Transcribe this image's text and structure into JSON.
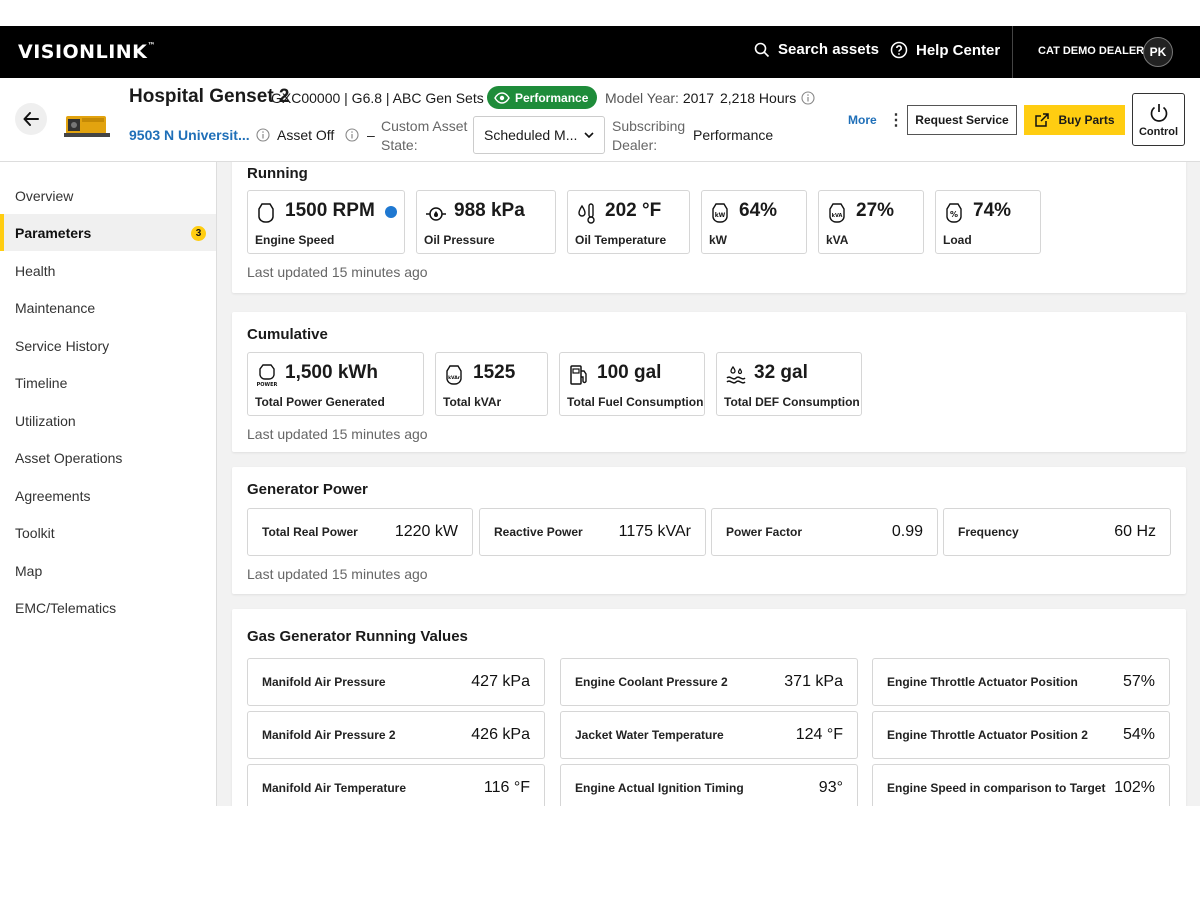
{
  "topbar": {
    "logo": "VISIONLINK",
    "logo_mark": "™",
    "search_label": "Search assets",
    "help_label": "Help Center",
    "dealer": "CAT DEMO DEALER",
    "avatar": "PK"
  },
  "asset": {
    "title": "Hospital Genset 2",
    "meta": "GXC00000 | G6.8  | ABC Gen Sets",
    "badge": "Performance",
    "model_year_label": "Model Year:",
    "model_year": "2017",
    "hours": "2,218 Hours",
    "address": "9503 N Universit...",
    "asset_state": "Asset Off",
    "dash": "–",
    "custom_state_label_1": "Custom Asset",
    "custom_state_label_2": "State:",
    "custom_state_value": "Scheduled M...",
    "sub_dealer_label_1": "Subscribing",
    "sub_dealer_label_2": "Dealer:",
    "sub_dealer_value": "Performance",
    "more": "More",
    "request_service": "Request Service",
    "buy_parts": "Buy Parts",
    "control": "Control"
  },
  "sidebar": {
    "items": [
      {
        "label": "Overview"
      },
      {
        "label": "Parameters",
        "badge": "3"
      },
      {
        "label": "Health"
      },
      {
        "label": "Maintenance"
      },
      {
        "label": "Service History"
      },
      {
        "label": "Timeline"
      },
      {
        "label": "Utilization"
      },
      {
        "label": "Asset Operations"
      },
      {
        "label": "Agreements"
      },
      {
        "label": "Toolkit"
      },
      {
        "label": "Map"
      },
      {
        "label": "EMC/Telematics"
      }
    ]
  },
  "running": {
    "title": "Running",
    "tiles": [
      {
        "value": "1500 RPM",
        "label": "Engine Speed"
      },
      {
        "value": "988 kPa",
        "label": "Oil Pressure"
      },
      {
        "value": "202 °F",
        "label": "Oil Temperature"
      },
      {
        "value": "64%",
        "label": "kW"
      },
      {
        "value": "27%",
        "label": "kVA"
      },
      {
        "value": "74%",
        "label": "Load"
      }
    ],
    "updated": "Last updated 15 minutes ago"
  },
  "cumulative": {
    "title": "Cumulative",
    "tiles": [
      {
        "value": "1,500 kWh",
        "label": "Total Power Generated"
      },
      {
        "value": "1525",
        "label": "Total kVAr"
      },
      {
        "value": "100 gal",
        "label": "Total Fuel Consumption"
      },
      {
        "value": "32 gal",
        "label": "Total DEF Consumption"
      }
    ],
    "updated": "Last updated 15 minutes ago"
  },
  "generator_power": {
    "title": "Generator Power",
    "items": [
      {
        "label": "Total Real Power",
        "value": "1220 kW"
      },
      {
        "label": "Reactive Power",
        "value": "1175 kVAr"
      },
      {
        "label": "Power Factor",
        "value": "0.99"
      },
      {
        "label": "Frequency",
        "value": "60 Hz"
      }
    ],
    "updated": "Last updated 15 minutes ago"
  },
  "gas_running": {
    "title": "Gas Generator Running Values",
    "items": [
      {
        "label": "Manifold Air Pressure",
        "value": "427 kPa"
      },
      {
        "label": "Engine Coolant Pressure 2",
        "value": "371 kPa"
      },
      {
        "label": "Engine Throttle Actuator Position",
        "value": "57%"
      },
      {
        "label": "Manifold Air Pressure 2",
        "value": "426 kPa"
      },
      {
        "label": "Jacket Water Temperature",
        "value": "124 °F"
      },
      {
        "label": "Engine Throttle Actuator Position 2",
        "value": "54%"
      },
      {
        "label": "Manifold Air Temperature",
        "value": "116 °F"
      },
      {
        "label": "Engine Actual Ignition Timing",
        "value": "93°"
      },
      {
        "label": "Engine Speed in comparison to Target",
        "value": "102%"
      }
    ]
  },
  "icon_labels": {
    "power": "POWER",
    "kw": "kW",
    "kva": "kVA",
    "kvar": "kVAr",
    "load": "%"
  },
  "colors": {
    "accent_yellow": "#ffcd11",
    "link_blue": "#1f6fb8",
    "badge_green": "#1e8c3a",
    "status_dot_blue": "#1f78d1"
  }
}
